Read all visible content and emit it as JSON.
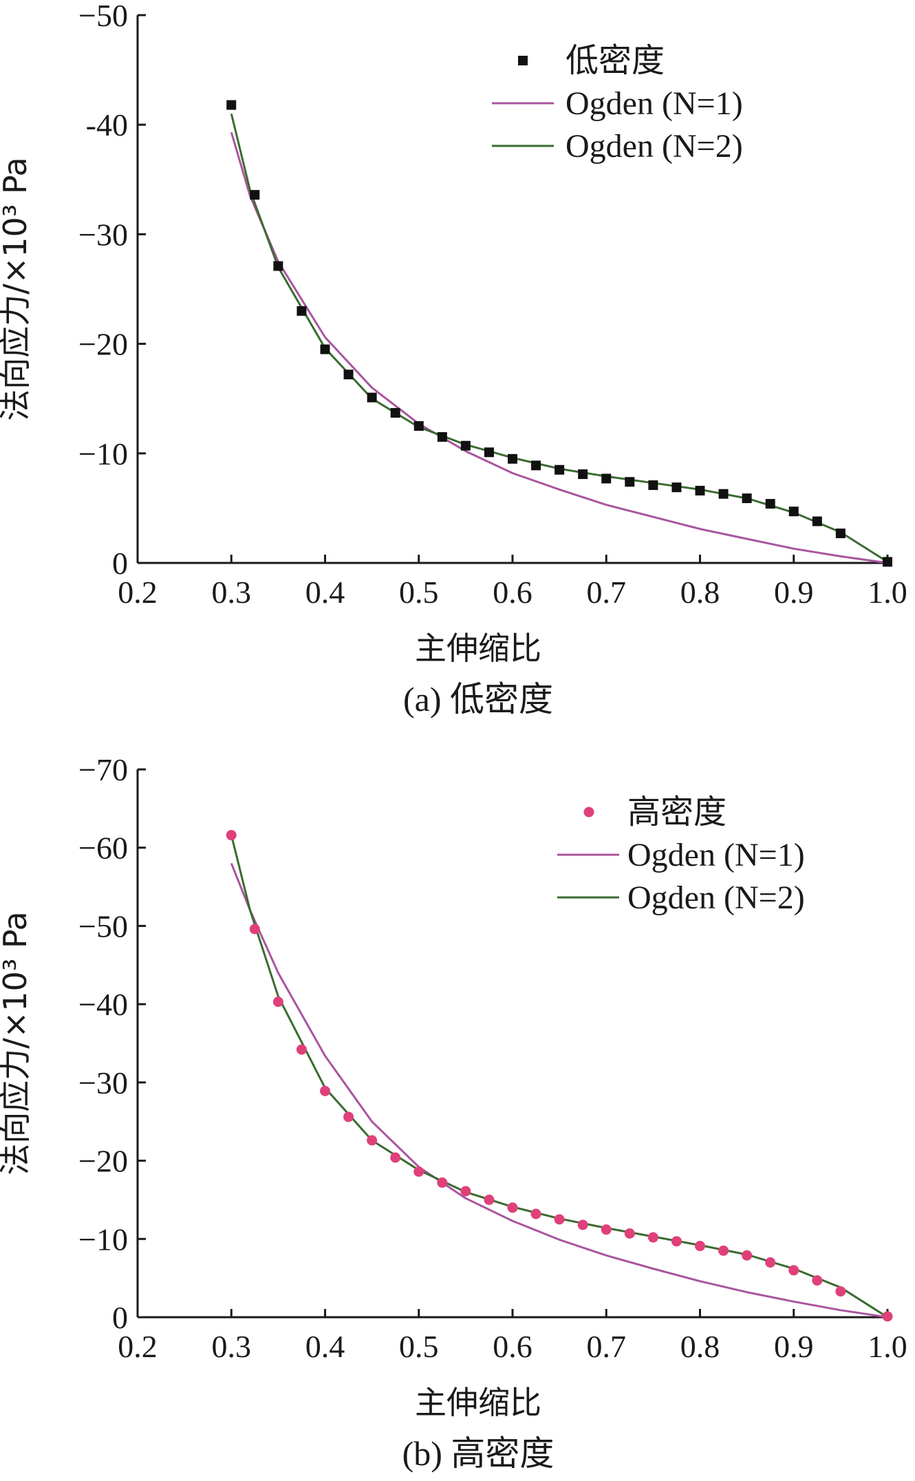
{
  "chart_data": [
    {
      "type": "scatter",
      "panel_caption": "(a) 低密度",
      "xlabel": "主伸缩比",
      "ylabel": "法向应力/×10³ Pa",
      "xlim": [
        0.2,
        1.0
      ],
      "ylim": [
        -50,
        0
      ],
      "y_axis_inverted": true,
      "x_ticks": [
        "0.2",
        "0.3",
        "0.4",
        "0.5",
        "0.6",
        "0.7",
        "0.8",
        "0.9",
        "1.0"
      ],
      "y_ticks": [
        "−50",
        "-40",
        "−30",
        "−20",
        "−10",
        "0"
      ],
      "grid": false,
      "legend_position": "top-right",
      "series": [
        {
          "name": "低密度",
          "kind": "markers",
          "marker": "square",
          "color": "#111111",
          "x": [
            0.3,
            0.325,
            0.35,
            0.375,
            0.4,
            0.425,
            0.45,
            0.475,
            0.5,
            0.525,
            0.55,
            0.575,
            0.6,
            0.625,
            0.65,
            0.675,
            0.7,
            0.725,
            0.75,
            0.775,
            0.8,
            0.825,
            0.85,
            0.875,
            0.9,
            0.925,
            0.95,
            1.0
          ],
          "y": [
            -41.8,
            -33.6,
            -27.1,
            -23.0,
            -19.5,
            -17.2,
            -15.1,
            -13.7,
            -12.5,
            -11.5,
            -10.7,
            -10.1,
            -9.5,
            -8.9,
            -8.5,
            -8.1,
            -7.7,
            -7.4,
            -7.1,
            -6.9,
            -6.6,
            -6.3,
            -5.9,
            -5.4,
            -4.7,
            -3.8,
            -2.7,
            -0.1
          ]
        },
        {
          "name": "Ogden (N=1)",
          "kind": "line",
          "color": "#a9559e",
          "x": [
            0.3,
            0.32,
            0.35,
            0.4,
            0.45,
            0.5,
            0.55,
            0.6,
            0.65,
            0.7,
            0.75,
            0.8,
            0.85,
            0.9,
            0.95,
            1.0
          ],
          "y": [
            -39.3,
            -33.5,
            -27.5,
            -20.6,
            -16.0,
            -12.7,
            -10.2,
            -8.2,
            -6.7,
            -5.3,
            -4.2,
            -3.1,
            -2.2,
            -1.3,
            -0.6,
            0
          ]
        },
        {
          "name": "Ogden (N=2)",
          "kind": "line",
          "color": "#3a6b30",
          "x": [
            0.3,
            0.32,
            0.35,
            0.4,
            0.45,
            0.5,
            0.55,
            0.6,
            0.65,
            0.7,
            0.75,
            0.8,
            0.85,
            0.9,
            0.95,
            1.0
          ],
          "y": [
            -41.0,
            -34.0,
            -27.0,
            -19.6,
            -15.0,
            -12.4,
            -10.8,
            -9.6,
            -8.6,
            -7.9,
            -7.3,
            -6.7,
            -5.9,
            -4.6,
            -2.8,
            -0.1
          ]
        }
      ]
    },
    {
      "type": "scatter",
      "panel_caption": "(b) 高密度",
      "xlabel": "主伸缩比",
      "ylabel": "法向应力/×10³ Pa",
      "xlim": [
        0.2,
        1.0
      ],
      "ylim": [
        -70,
        0
      ],
      "y_axis_inverted": true,
      "x_ticks": [
        "0.2",
        "0.3",
        "0.4",
        "0.5",
        "0.6",
        "0.7",
        "0.8",
        "0.9",
        "1.0"
      ],
      "y_ticks": [
        "−70",
        "−60",
        "−50",
        "−40",
        "−30",
        "−20",
        "−10",
        "0"
      ],
      "grid": false,
      "legend_position": "top-right",
      "series": [
        {
          "name": "高密度",
          "kind": "markers",
          "marker": "circle",
          "color": "#e0407a",
          "x": [
            0.3,
            0.325,
            0.35,
            0.375,
            0.4,
            0.425,
            0.45,
            0.475,
            0.5,
            0.525,
            0.55,
            0.575,
            0.6,
            0.625,
            0.65,
            0.675,
            0.7,
            0.725,
            0.75,
            0.775,
            0.8,
            0.825,
            0.85,
            0.875,
            0.9,
            0.925,
            0.95,
            1.0
          ],
          "y": [
            -61.6,
            -49.6,
            -40.3,
            -34.2,
            -28.9,
            -25.6,
            -22.6,
            -20.4,
            -18.6,
            -17.2,
            -16.1,
            -15.0,
            -14.0,
            -13.2,
            -12.5,
            -11.8,
            -11.2,
            -10.7,
            -10.2,
            -9.7,
            -9.1,
            -8.5,
            -7.9,
            -7.0,
            -6.0,
            -4.7,
            -3.3,
            -0.1
          ]
        },
        {
          "name": "Ogden (N=1)",
          "kind": "line",
          "color": "#a9559e",
          "x": [
            0.3,
            0.32,
            0.35,
            0.4,
            0.45,
            0.5,
            0.55,
            0.6,
            0.65,
            0.7,
            0.75,
            0.8,
            0.85,
            0.9,
            0.95,
            1.0
          ],
          "y": [
            -58.0,
            -52.0,
            -44.0,
            -33.4,
            -25.0,
            -19.2,
            -15.2,
            -12.3,
            -9.9,
            -7.9,
            -6.2,
            -4.6,
            -3.2,
            -2.0,
            -0.9,
            0
          ]
        },
        {
          "name": "Ogden (N=2)",
          "kind": "line",
          "color": "#3a6b30",
          "x": [
            0.3,
            0.32,
            0.35,
            0.4,
            0.45,
            0.5,
            0.55,
            0.6,
            0.65,
            0.7,
            0.75,
            0.8,
            0.85,
            0.9,
            0.95,
            1.0
          ],
          "y": [
            -61.6,
            -52.0,
            -41.0,
            -29.3,
            -22.6,
            -18.8,
            -16.0,
            -14.1,
            -12.6,
            -11.4,
            -10.3,
            -9.2,
            -8.0,
            -6.2,
            -3.8,
            0
          ]
        }
      ]
    }
  ]
}
